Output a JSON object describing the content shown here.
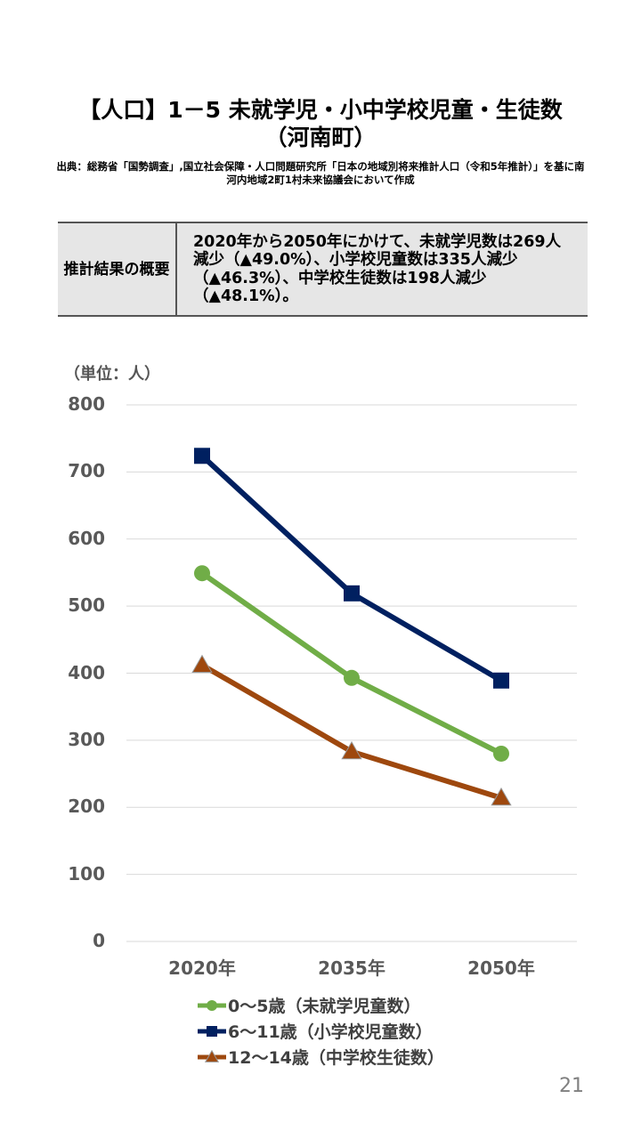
{
  "title": {
    "line1": "【人口】1－5 未就学児・小中学校児童・生徒数",
    "line2": "（河南町）"
  },
  "source": "出典：総務省「国勢調査」,国立社会保障・人口問題研究所「日本の地域別将来推計人口（令和5年推計）」を基に南河内地域2町1村未来協議会において作成",
  "summary": {
    "label": "推計結果の概要",
    "text": "2020年から2050年にかけて、未就学児数は269人減少（▲49.0%）、小学校児童数は335人減少（▲46.3%）、中学校生徒数は198人減少（▲48.1%）。"
  },
  "page_number": "21",
  "chart_data": {
    "type": "line",
    "title": "",
    "unit_label": "（単位：人）",
    "xlabel": "",
    "ylabel": "人",
    "categories": [
      "2020年",
      "2035年",
      "2050年"
    ],
    "ylim": [
      0,
      800
    ],
    "yticks": [
      "0",
      "100",
      "200",
      "300",
      "400",
      "500",
      "600",
      "700",
      "800"
    ],
    "grid": true,
    "legend_position": "bottom",
    "series": [
      {
        "name": "0～5歳（未就学児童数）",
        "marker": "circle",
        "color": "#70ad47",
        "values": [
          549,
          393,
          280
        ]
      },
      {
        "name": "6～11歳（小学校児童数）",
        "marker": "square",
        "color": "#002060",
        "values": [
          724,
          519,
          389
        ]
      },
      {
        "name": "12～14歳（中学校生徒数）",
        "marker": "triangle",
        "color": "#9e480e",
        "values": [
          412,
          283,
          214
        ]
      }
    ]
  }
}
